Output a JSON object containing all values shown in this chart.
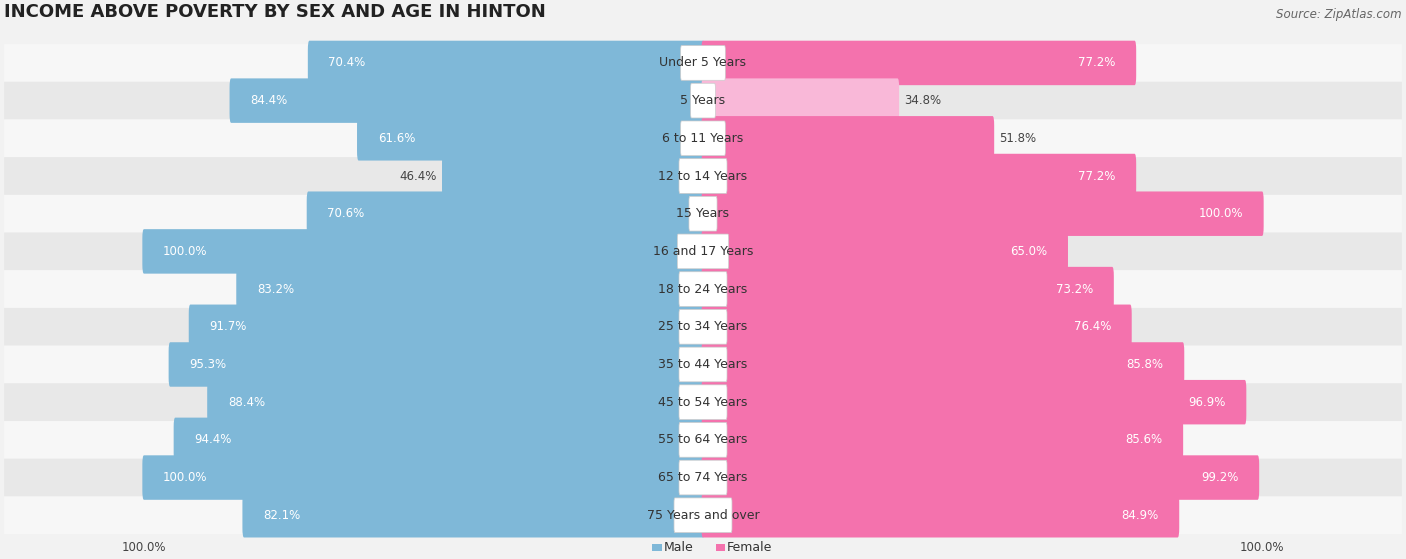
{
  "title": "INCOME ABOVE POVERTY BY SEX AND AGE IN HINTON",
  "source": "Source: ZipAtlas.com",
  "categories": [
    "Under 5 Years",
    "5 Years",
    "6 to 11 Years",
    "12 to 14 Years",
    "15 Years",
    "16 and 17 Years",
    "18 to 24 Years",
    "25 to 34 Years",
    "35 to 44 Years",
    "45 to 54 Years",
    "55 to 64 Years",
    "65 to 74 Years",
    "75 Years and over"
  ],
  "male_values": [
    70.4,
    84.4,
    61.6,
    46.4,
    70.6,
    100.0,
    83.2,
    91.7,
    95.3,
    88.4,
    94.4,
    100.0,
    82.1
  ],
  "female_values": [
    77.2,
    34.8,
    51.8,
    77.2,
    100.0,
    65.0,
    73.2,
    76.4,
    85.8,
    96.9,
    85.6,
    99.2,
    84.9
  ],
  "male_color": "#7fb8d8",
  "female_color": "#f472ad",
  "female_color_light": "#f9b8d8",
  "bg_color": "#f2f2f2",
  "row_bg_even": "#f7f7f7",
  "row_bg_odd": "#e8e8e8",
  "max_value": 100.0,
  "legend_male": "Male",
  "legend_female": "Female",
  "title_fontsize": 13,
  "label_fontsize": 9,
  "value_fontsize": 8.5,
  "source_fontsize": 8.5
}
